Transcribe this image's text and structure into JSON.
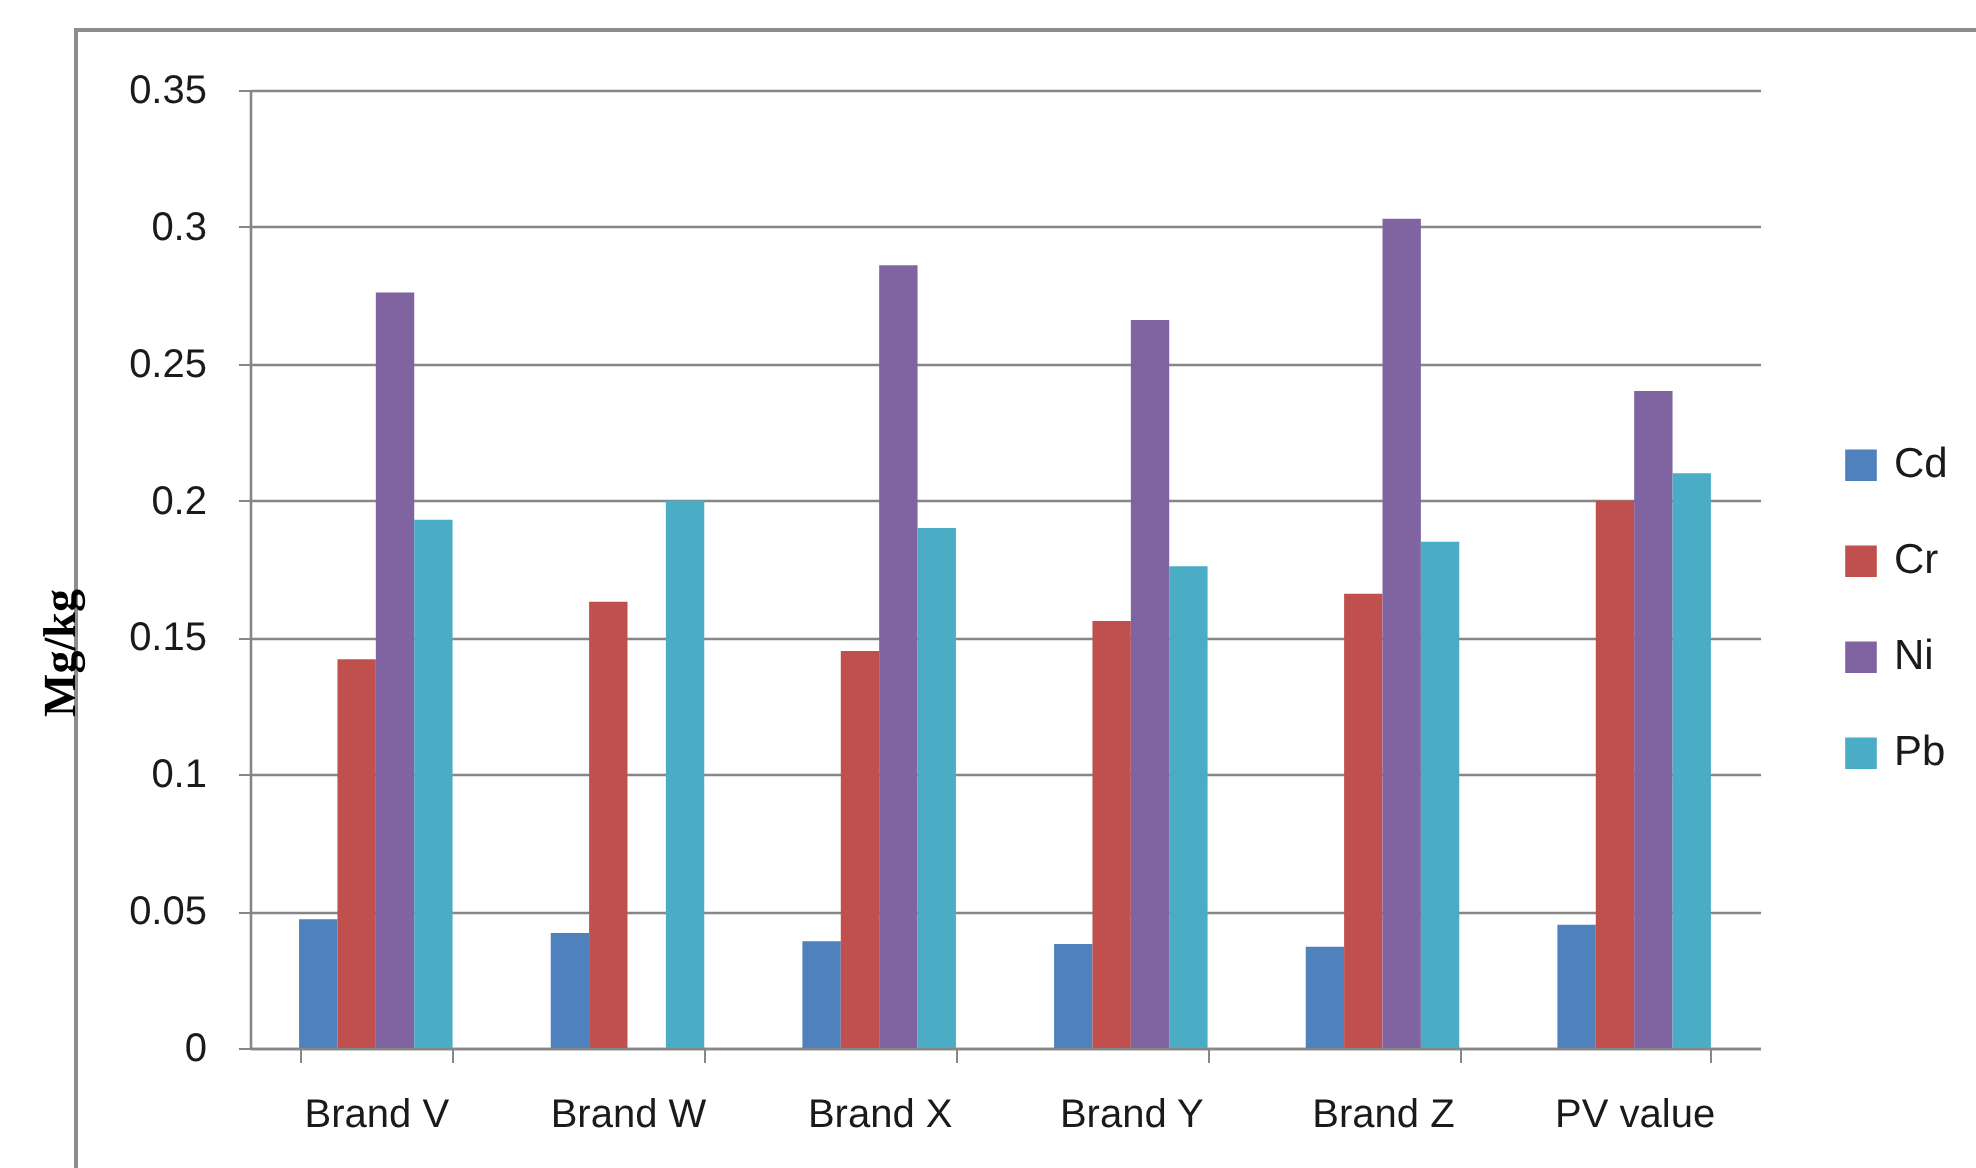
{
  "chart_data": {
    "type": "bar",
    "ylabel": "Mg/kg",
    "categories": [
      "Brand V",
      "Brand W",
      "Brand X",
      "Brand Y",
      "Brand Z",
      "PV value"
    ],
    "series": [
      {
        "name": "Cd",
        "color": "#4f81bd",
        "values": [
          0.047,
          0.042,
          0.039,
          0.038,
          0.037,
          0.045
        ]
      },
      {
        "name": "Cr",
        "color": "#c0504d",
        "values": [
          0.142,
          0.163,
          0.145,
          0.156,
          0.166,
          0.2
        ]
      },
      {
        "name": "Ni",
        "color": "#8064a2",
        "values": [
          0.276,
          null,
          0.286,
          0.266,
          0.303,
          0.24
        ]
      },
      {
        "name": "Pb",
        "color": "#4bacc6",
        "values": [
          0.193,
          0.2,
          0.19,
          0.176,
          0.185,
          0.21
        ]
      }
    ],
    "ylim": [
      0,
      0.35
    ],
    "yticks": [
      0,
      0.05,
      0.1,
      0.15,
      0.2,
      0.25,
      0.3,
      0.35
    ],
    "grid": "y",
    "legend": "right"
  }
}
